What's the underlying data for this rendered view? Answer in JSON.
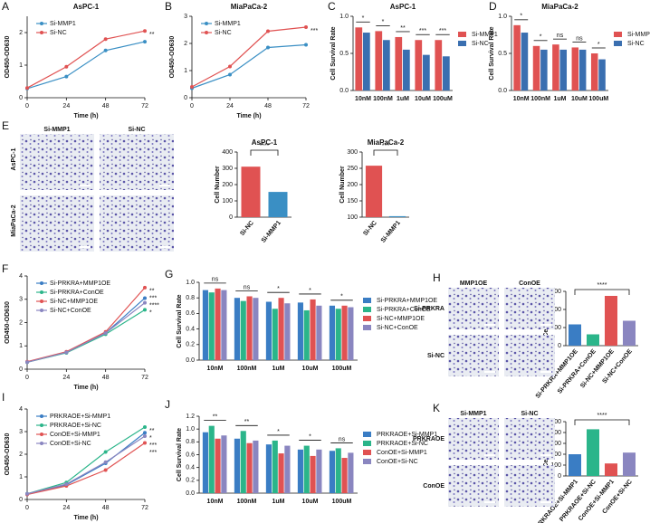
{
  "chart_data": [
    {
      "type": "line",
      "panel": "A",
      "title": "AsPC-1",
      "x_label": "Time (h)",
      "y_label": "OD450-OD630",
      "x": [
        0,
        24,
        48,
        72
      ],
      "xlim": [
        0,
        72
      ],
      "xticks": [
        0,
        24,
        48,
        72
      ],
      "ylim": [
        0,
        2.5
      ],
      "yticks": [
        0,
        1,
        2
      ],
      "legend": "upper left",
      "series": [
        {
          "name": "Si-MMP1",
          "color": "#3a8fc4",
          "values": [
            0.28,
            0.65,
            1.45,
            1.72
          ]
        },
        {
          "name": "Si-NC",
          "color": "#e05252",
          "values": [
            0.3,
            0.95,
            1.8,
            2.05
          ]
        }
      ],
      "significance": [
        "**"
      ]
    },
    {
      "type": "line",
      "panel": "B",
      "title": "MiaPaCa-2",
      "x_label": "Time (h)",
      "y_label": "OD450-OD630",
      "x": [
        0,
        24,
        48,
        72
      ],
      "xlim": [
        0,
        72
      ],
      "xticks": [
        0,
        24,
        48,
        72
      ],
      "ylim": [
        0,
        3
      ],
      "yticks": [
        0,
        1,
        2,
        3
      ],
      "legend": "upper left",
      "series": [
        {
          "name": "Si-MMP1",
          "color": "#3a8fc4",
          "values": [
            0.35,
            0.85,
            1.85,
            1.95
          ]
        },
        {
          "name": "Si-NC",
          "color": "#e05252",
          "values": [
            0.4,
            1.15,
            2.45,
            2.6
          ]
        }
      ],
      "significance": [
        "***"
      ]
    },
    {
      "type": "bar",
      "panel": "C",
      "title": "AsPC-1",
      "y_label": "Cell Survival Rate",
      "categories": [
        "10nM",
        "100nM",
        "1uM",
        "10uM",
        "100uM"
      ],
      "ylim": [
        0,
        1
      ],
      "yticks": [
        {
          "value": 0,
          "label": "0.0"
        },
        {
          "value": 0.5,
          "label": "0.5"
        },
        {
          "value": 1,
          "label": "1.0"
        }
      ],
      "legend": "right",
      "series": [
        {
          "name": "Si-MMP1",
          "color": "#e05252",
          "values": [
            0.85,
            0.8,
            0.72,
            0.68,
            0.68
          ]
        },
        {
          "name": "Si-NC",
          "color": "#3a6fb0",
          "values": [
            0.78,
            0.68,
            0.55,
            0.48,
            0.46
          ]
        }
      ],
      "significance": [
        "*",
        "*",
        "**",
        "***",
        "***"
      ]
    },
    {
      "type": "bar",
      "panel": "D",
      "title": "MiaPaCa-2",
      "y_label": "Cell Survival Rate",
      "categories": [
        "10nM",
        "100nM",
        "1uM",
        "10uM",
        "100uM"
      ],
      "ylim": [
        0,
        1
      ],
      "yticks": [
        {
          "value": 0,
          "label": "0.0"
        },
        {
          "value": 0.5,
          "label": "0.5"
        },
        {
          "value": 1,
          "label": "1.0"
        }
      ],
      "legend": "right",
      "series": [
        {
          "name": "Si-MMP1",
          "color": "#e05252",
          "values": [
            0.88,
            0.6,
            0.62,
            0.58,
            0.5
          ]
        },
        {
          "name": "Si-NC",
          "color": "#3a6fb0",
          "values": [
            0.78,
            0.55,
            0.55,
            0.55,
            0.42
          ]
        }
      ],
      "significance": [
        "*",
        "*",
        "ns",
        "ns",
        "*"
      ]
    },
    {
      "type": "bar",
      "title": "AsPC-1",
      "y_label": "Cell Number",
      "categories": [
        "Si-NC",
        "Si-MMP1"
      ],
      "values": [
        310,
        155
      ],
      "colors": [
        "#e05252",
        "#3a8fc4"
      ],
      "ylim": [
        0,
        400
      ],
      "yticks": [
        0,
        100,
        200,
        300,
        400
      ],
      "significance": [
        "****"
      ]
    },
    {
      "type": "bar",
      "title": "MiaPaCa-2",
      "y_label": "Cell Number",
      "categories": [
        "Si-NC",
        "Si-MMP1"
      ],
      "values": [
        258,
        103
      ],
      "colors": [
        "#e05252",
        "#3a8fc4"
      ],
      "ylim": [
        100,
        300
      ],
      "yticks": [
        100,
        150,
        200,
        250,
        300
      ],
      "significance": [
        "***"
      ]
    },
    {
      "type": "line",
      "panel": "F",
      "x_label": "Time (h)",
      "y_label": "OD450-OD630",
      "x": [
        0,
        24,
        48,
        72
      ],
      "xlim": [
        0,
        72
      ],
      "xticks": [
        0,
        24,
        48,
        72
      ],
      "ylim": [
        0,
        4
      ],
      "yticks": [
        0,
        1,
        2,
        3,
        4
      ],
      "legend": "upper left",
      "series": [
        {
          "name": "Si-PRKRA+MMP1OE",
          "color": "#3a7dc4",
          "values": [
            0.3,
            0.72,
            1.55,
            3.05
          ]
        },
        {
          "name": "Si-PRKRA+ConOE",
          "color": "#2bb58a",
          "values": [
            0.3,
            0.7,
            1.5,
            2.55
          ]
        },
        {
          "name": "Si-NC+MMP1OE",
          "color": "#e05252",
          "values": [
            0.32,
            0.75,
            1.6,
            3.5
          ]
        },
        {
          "name": "Si-NC+ConOE",
          "color": "#8a86c0",
          "values": [
            0.3,
            0.72,
            1.55,
            2.85
          ]
        }
      ],
      "significance": [
        "**",
        "***",
        "****",
        "*"
      ]
    },
    {
      "type": "bar",
      "panel": "G",
      "y_label": "Cell Survival Rate",
      "categories": [
        "10nM",
        "100nM",
        "1uM",
        "10uM",
        "100uM"
      ],
      "ylim": [
        0,
        1
      ],
      "yticks": [
        {
          "value": 0,
          "label": "0.0"
        },
        {
          "value": 0.2,
          "label": "0.2"
        },
        {
          "value": 0.4,
          "label": "0.4"
        },
        {
          "value": 0.6,
          "label": "0.6"
        },
        {
          "value": 0.8,
          "label": "0.8"
        },
        {
          "value": 1,
          "label": "1.0"
        }
      ],
      "legend": "right",
      "series": [
        {
          "name": "Si-PRKRA+MMP1OE",
          "color": "#3a7dc4",
          "values": [
            0.9,
            0.8,
            0.75,
            0.74,
            0.7
          ]
        },
        {
          "name": "Si-PRKRA+ConOE",
          "color": "#2bb58a",
          "values": [
            0.87,
            0.76,
            0.66,
            0.64,
            0.66
          ]
        },
        {
          "name": "Si-NC+MMP1OE",
          "color": "#e05252",
          "values": [
            0.92,
            0.82,
            0.8,
            0.78,
            0.7
          ]
        },
        {
          "name": "Si-NC+ConOE",
          "color": "#8a86c0",
          "values": [
            0.9,
            0.8,
            0.73,
            0.7,
            0.68
          ]
        }
      ],
      "significance": [
        "ns",
        "ns",
        "*",
        "*",
        "*"
      ]
    },
    {
      "type": "bar",
      "y_label": "Cell Number",
      "categories": [
        "Si-PRKRA+MMP1OE",
        "Si-PRKRA+ConOE",
        "Si-NC+MMP1OE",
        "Si-NC+ConOE"
      ],
      "values": [
        235,
        125,
        550,
        275
      ],
      "colors": [
        "#3a7dc4",
        "#2bb58a",
        "#e05252",
        "#8a86c0"
      ],
      "ylim": [
        0,
        600
      ],
      "yticks": [
        0,
        200,
        400,
        600
      ],
      "significance": [
        "****"
      ]
    },
    {
      "type": "line",
      "panel": "I",
      "x_label": "Time (h)",
      "y_label": "OD450-OD630",
      "x": [
        0,
        24,
        48,
        72
      ],
      "xlim": [
        0,
        72
      ],
      "xticks": [
        0,
        24,
        48,
        72
      ],
      "ylim": [
        0,
        4
      ],
      "yticks": [
        0,
        1,
        2,
        3,
        4
      ],
      "legend": "upper left",
      "series": [
        {
          "name": "PRKRAOE+Si-MMP1",
          "color": "#3a7dc4",
          "values": [
            0.25,
            0.65,
            1.6,
            2.95
          ]
        },
        {
          "name": "PRKRAOE+Si-NC",
          "color": "#2bb58a",
          "values": [
            0.25,
            0.75,
            2.1,
            3.2
          ]
        },
        {
          "name": "ConOE+Si-MMP1",
          "color": "#e05252",
          "values": [
            0.22,
            0.6,
            1.3,
            2.5
          ]
        },
        {
          "name": "ConOE+Si-NC",
          "color": "#8a86c0",
          "values": [
            0.25,
            0.68,
            1.65,
            2.8
          ]
        }
      ],
      "significance": [
        "**",
        "*",
        "***",
        "***"
      ]
    },
    {
      "type": "bar",
      "panel": "J",
      "y_label": "Cell Survival Rate",
      "categories": [
        "10nM",
        "100nM",
        "1uM",
        "10uM",
        "100uM"
      ],
      "ylim": [
        0,
        1.2
      ],
      "yticks": [
        {
          "value": 0,
          "label": "0.0"
        },
        {
          "value": 0.2,
          "label": "0.2"
        },
        {
          "value": 0.4,
          "label": "0.4"
        },
        {
          "value": 0.6,
          "label": "0.6"
        },
        {
          "value": 0.8,
          "label": "0.8"
        },
        {
          "value": 1,
          "label": "1.0"
        },
        {
          "value": 1.2,
          "label": "1.2"
        }
      ],
      "legend": "right",
      "series": [
        {
          "name": "PRKRAOE+Si-MMP1",
          "color": "#3a7dc4",
          "values": [
            0.95,
            0.85,
            0.76,
            0.68,
            0.66
          ]
        },
        {
          "name": "PRKRAOE+Si-NC",
          "color": "#2bb58a",
          "values": [
            1.05,
            0.97,
            0.82,
            0.74,
            0.7
          ]
        },
        {
          "name": "ConOE+Si-MMP1",
          "color": "#e05252",
          "values": [
            0.85,
            0.78,
            0.62,
            0.58,
            0.55
          ]
        },
        {
          "name": "ConOE+Si-NC",
          "color": "#8a86c0",
          "values": [
            0.9,
            0.82,
            0.74,
            0.68,
            0.63
          ]
        }
      ],
      "significance": [
        "**",
        "**",
        "*",
        "*",
        "ns"
      ]
    },
    {
      "type": "bar",
      "y_label": "Cell Number",
      "categories": [
        "PRKRAOE+Si-MMP1",
        "PRKRAOE+Si-NC",
        "ConOE+Si-MMP1",
        "ConOE+Si-NC"
      ],
      "values": [
        200,
        430,
        115,
        215
      ],
      "colors": [
        "#3a7dc4",
        "#2bb58a",
        "#e05252",
        "#8a86c0"
      ],
      "ylim": [
        0,
        500
      ],
      "yticks": [
        0,
        100,
        200,
        300,
        400,
        500
      ],
      "significance": [
        "****"
      ]
    }
  ],
  "micrographs": [
    {
      "panel": "E",
      "columns": [
        "Si-MMP1",
        "Si-NC"
      ],
      "rows": [
        "AsPC-1",
        "MiaPaCa-2"
      ]
    },
    {
      "panel": "H",
      "columns": [
        "MMP1OE",
        "ConOE"
      ],
      "rows": [
        "Si-PRKRA",
        "Si-NC"
      ]
    },
    {
      "panel": "K",
      "columns": [
        "Si-MMP1",
        "Si-NC"
      ],
      "rows": [
        "PRKRAOE",
        "ConOE"
      ]
    }
  ]
}
